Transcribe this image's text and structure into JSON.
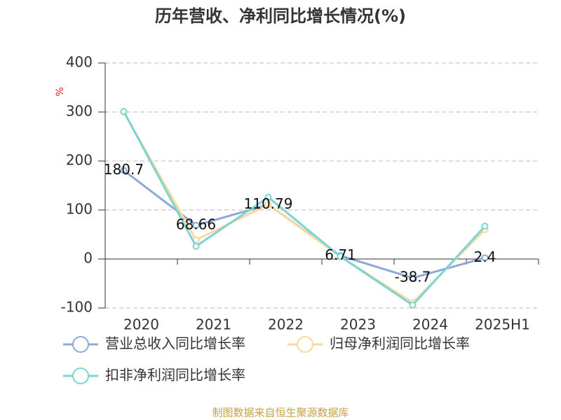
{
  "chart_data": {
    "type": "line",
    "title": "历年营收、净利同比增长情况(%)",
    "y_unit": "%",
    "categories": [
      "2020",
      "2021",
      "2022",
      "2023",
      "2024",
      "2025H1"
    ],
    "series": [
      {
        "name": "营业总收入同比增长率",
        "color": "#8ea9d8",
        "values": [
          180.7,
          68.66,
          110.79,
          6.71,
          -38.7,
          2.4
        ]
      },
      {
        "name": "归母净利润同比增长率",
        "color": "#f8d89c",
        "values": [
          300,
          39,
          111,
          5,
          -89,
          60
        ]
      },
      {
        "name": "扣非净利润同比增长率",
        "color": "#7dd4d4",
        "values": [
          301,
          26,
          126,
          5,
          -94,
          67
        ]
      }
    ],
    "ylim": [
      -100,
      400
    ],
    "yticks": [
      -100,
      0,
      100,
      200,
      300,
      400
    ],
    "grid": true,
    "source": "制图数据来自恒生聚源数据库"
  }
}
